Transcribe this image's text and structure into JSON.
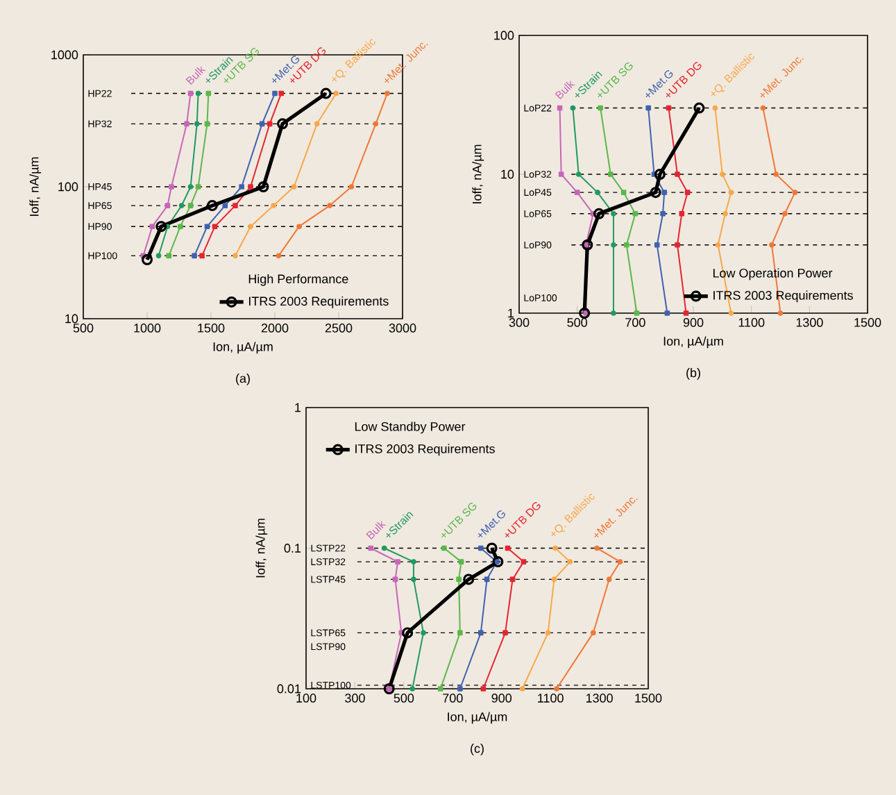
{
  "chart_data": [
    {
      "type": "line",
      "xlabel": "Ion, µA/µm",
      "ylabel": "Ioff, nA/µm",
      "log": "y",
      "xlim": [
        500,
        3000
      ],
      "ylim": [
        10,
        1000
      ],
      "xticks": [
        500,
        1000,
        1500,
        2000,
        2500,
        3000
      ],
      "yticks": [
        10,
        100,
        1000
      ],
      "legend": "bottom right",
      "legend_title": "High Performance",
      "series": [
        {
          "name": "Bulk",
          "color": "#c766b8",
          "marker": "square",
          "x": [
            1340,
            1310,
            1190,
            1160,
            1040,
            970
          ],
          "values": [
            510,
            300,
            100,
            72,
            50,
            30
          ]
        },
        {
          "name": "+Strain",
          "color": "#1f9a60",
          "marker": "circle",
          "x": [
            1400,
            1390,
            1340,
            1270,
            1160,
            1090
          ],
          "values": [
            510,
            300,
            100,
            72,
            50,
            30
          ]
        },
        {
          "name": "+UTB SG",
          "color": "#5ab84a",
          "marker": "square",
          "x": [
            1480,
            1470,
            1400,
            1340,
            1260,
            1170
          ],
          "values": [
            510,
            300,
            100,
            72,
            50,
            30
          ]
        },
        {
          "name": "+Met.G",
          "color": "#3f62b0",
          "marker": "square",
          "x": [
            2000,
            1900,
            1740,
            1610,
            1470,
            1370
          ],
          "values": [
            510,
            300,
            100,
            72,
            50,
            30
          ]
        },
        {
          "name": "+UTB DG",
          "color": "#e52530",
          "marker": "square",
          "x": [
            2050,
            1960,
            1810,
            1690,
            1530,
            1430
          ],
          "values": [
            510,
            300,
            100,
            72,
            50,
            30
          ]
        },
        {
          "name": "+Q. Ballistic",
          "color": "#f7a84a",
          "marker": "circle",
          "x": [
            2480,
            2330,
            2150,
            1990,
            1810,
            1690
          ],
          "values": [
            510,
            300,
            100,
            72,
            50,
            30
          ]
        },
        {
          "name": "+Met. Junc.",
          "color": "#f07838",
          "marker": "circle",
          "x": [
            2880,
            2790,
            2600,
            2430,
            2190,
            2030
          ],
          "values": [
            510,
            300,
            100,
            72,
            50,
            30
          ]
        },
        {
          "name": "ITRS 2003 Requirements",
          "color": "#000000",
          "marker": "circle",
          "line_style": "solid",
          "x": [
            2400,
            2060,
            1910,
            1510,
            1110,
            1000
          ],
          "values": [
            510,
            300,
            100,
            72,
            50,
            28
          ]
        }
      ],
      "ref_lines": [
        {
          "axis": "y",
          "value": 510,
          "label": "HP22",
          "line_style": "dashed"
        },
        {
          "axis": "y",
          "value": 300,
          "label": "HP32",
          "line_style": "dashed"
        },
        {
          "axis": "y",
          "value": 100,
          "label": "HP45",
          "line_style": "dashed"
        },
        {
          "axis": "y",
          "value": 72,
          "label": "HP65",
          "line_style": "dashed"
        },
        {
          "axis": "y",
          "value": 50,
          "label": "HP90",
          "line_style": "dashed"
        },
        {
          "axis": "y",
          "value": 30,
          "label": "HP100",
          "line_style": "dashed"
        }
      ],
      "annotations": [
        "(a)"
      ]
    },
    {
      "type": "line",
      "xlabel": "Ion, µA/µm",
      "ylabel": "Ioff, nA/µm",
      "log": "y",
      "xlim": [
        300,
        1500
      ],
      "ylim": [
        1,
        100
      ],
      "xticks": [
        300,
        500,
        700,
        900,
        1100,
        1300,
        1500
      ],
      "yticks": [
        1,
        10,
        100
      ],
      "legend": "bottom right",
      "legend_title": "Low Operation Power",
      "series": [
        {
          "name": "Bulk",
          "color": "#c766b8",
          "marker": "square",
          "x": [
            440,
            445,
            500,
            555,
            530,
            530
          ],
          "values": [
            30,
            10,
            7.4,
            5.2,
            3.1,
            1
          ]
        },
        {
          "name": "+Strain",
          "color": "#1f9a60",
          "marker": "circle",
          "x": [
            485,
            505,
            570,
            625,
            625,
            625
          ],
          "values": [
            30,
            10,
            7.4,
            5.2,
            3.1,
            1
          ]
        },
        {
          "name": "+UTB SG",
          "color": "#5ab84a",
          "marker": "square",
          "x": [
            580,
            615,
            660,
            700,
            670,
            705
          ],
          "values": [
            30,
            10,
            7.4,
            5.2,
            3.1,
            1
          ]
        },
        {
          "name": "+Met.G",
          "color": "#3f62b0",
          "marker": "square",
          "x": [
            745,
            765,
            800,
            795,
            775,
            810
          ],
          "values": [
            30,
            10,
            7.4,
            5.2,
            3.1,
            1
          ]
        },
        {
          "name": "+UTB DG",
          "color": "#e52530",
          "marker": "square",
          "x": [
            815,
            845,
            880,
            860,
            845,
            875
          ],
          "values": [
            30,
            10,
            7.4,
            5.2,
            3.1,
            1
          ]
        },
        {
          "name": "+Q. Ballistic",
          "color": "#f7a84a",
          "marker": "circle",
          "x": [
            975,
            1000,
            1030,
            1010,
            985,
            1030
          ],
          "values": [
            30,
            10,
            7.4,
            5.2,
            3.1,
            1
          ]
        },
        {
          "name": "+Met. Junc.",
          "color": "#f07838",
          "marker": "circle",
          "x": [
            1140,
            1185,
            1250,
            1215,
            1170,
            1200
          ],
          "values": [
            30,
            10,
            7.4,
            5.2,
            3.1,
            1
          ]
        },
        {
          "name": "ITRS 2003 Requirements",
          "color": "#000000",
          "marker": "circle",
          "line_style": "solid",
          "x": [
            920,
            785,
            770,
            575,
            535,
            525
          ],
          "values": [
            30,
            10,
            7.4,
            5.2,
            3.1,
            1
          ]
        }
      ],
      "ref_lines": [
        {
          "axis": "y",
          "value": 30,
          "label": "LoP22",
          "line_style": "dashed"
        },
        {
          "axis": "y",
          "value": 10,
          "label": "LoP32",
          "line_style": "dashed"
        },
        {
          "axis": "y",
          "value": 7.4,
          "label": "LoP45",
          "line_style": "dashed"
        },
        {
          "axis": "y",
          "value": 5.2,
          "label": "LoP65",
          "line_style": "dashed"
        },
        {
          "axis": "y",
          "value": 3.1,
          "label": "LoP90",
          "line_style": "dashed"
        }
      ],
      "annotations": [
        "LoP100",
        "(b)"
      ]
    },
    {
      "type": "line",
      "xlabel": "Ion, µA/µm",
      "ylabel": "Ioff, nA/µm",
      "log": "y",
      "xlim": [
        100,
        1500
      ],
      "ylim": [
        0.01,
        1
      ],
      "xticks": [
        100,
        300,
        500,
        700,
        900,
        1100,
        1300,
        1500
      ],
      "yticks": [
        0.01,
        0.1,
        1
      ],
      "legend": "top left",
      "legend_title": "Low Standby Power",
      "series": [
        {
          "name": "Bulk",
          "color": "#c766b8",
          "marker": "square",
          "x": [
            365,
            475,
            465,
            490,
            440
          ],
          "values": [
            0.1,
            0.08,
            0.06,
            0.025,
            0.01
          ]
        },
        {
          "name": "+Strain",
          "color": "#1f9a60",
          "marker": "circle",
          "x": [
            420,
            540,
            540,
            580,
            535
          ],
          "values": [
            0.1,
            0.08,
            0.06,
            0.025,
            0.01
          ]
        },
        {
          "name": "+UTB SG",
          "color": "#5ab84a",
          "marker": "square",
          "x": [
            665,
            735,
            725,
            730,
            650
          ],
          "values": [
            0.1,
            0.08,
            0.06,
            0.025,
            0.01
          ]
        },
        {
          "name": "+Met.G",
          "color": "#3f62b0",
          "marker": "square",
          "x": [
            815,
            880,
            840,
            815,
            730
          ],
          "values": [
            0.1,
            0.08,
            0.06,
            0.025,
            0.01
          ]
        },
        {
          "name": "+UTB DG",
          "color": "#e52530",
          "marker": "square",
          "x": [
            925,
            990,
            945,
            915,
            825
          ],
          "values": [
            0.1,
            0.08,
            0.06,
            0.025,
            0.01
          ]
        },
        {
          "name": "+Q. Ballistic",
          "color": "#f7a84a",
          "marker": "circle",
          "x": [
            1120,
            1180,
            1115,
            1090,
            985
          ],
          "values": [
            0.1,
            0.08,
            0.06,
            0.025,
            0.01
          ]
        },
        {
          "name": "+Met. Junc.",
          "color": "#f07838",
          "marker": "circle",
          "x": [
            1290,
            1385,
            1340,
            1275,
            1125
          ],
          "values": [
            0.1,
            0.08,
            0.06,
            0.025,
            0.01
          ]
        },
        {
          "name": "ITRS 2003 Requirements",
          "color": "#000000",
          "marker": "circle",
          "line_style": "solid",
          "x": [
            860,
            885,
            765,
            515,
            440
          ],
          "values": [
            0.1,
            0.08,
            0.06,
            0.025,
            0.01
          ]
        }
      ],
      "ref_lines": [
        {
          "axis": "y",
          "value": 0.1,
          "label": "LSTP22",
          "line_style": "dashed"
        },
        {
          "axis": "y",
          "value": 0.08,
          "label": "LSTP32",
          "line_style": "dashed"
        },
        {
          "axis": "y",
          "value": 0.06,
          "label": "LSTP45",
          "line_style": "dashed"
        },
        {
          "axis": "y",
          "value": 0.025,
          "label": "LSTP65",
          "line_style": "dashed"
        },
        {
          "axis": "y",
          "value": 0.0106,
          "label": "LSTP100",
          "line_style": "dashed"
        }
      ],
      "annotations": [
        "LSTP90",
        "(c)"
      ]
    }
  ]
}
